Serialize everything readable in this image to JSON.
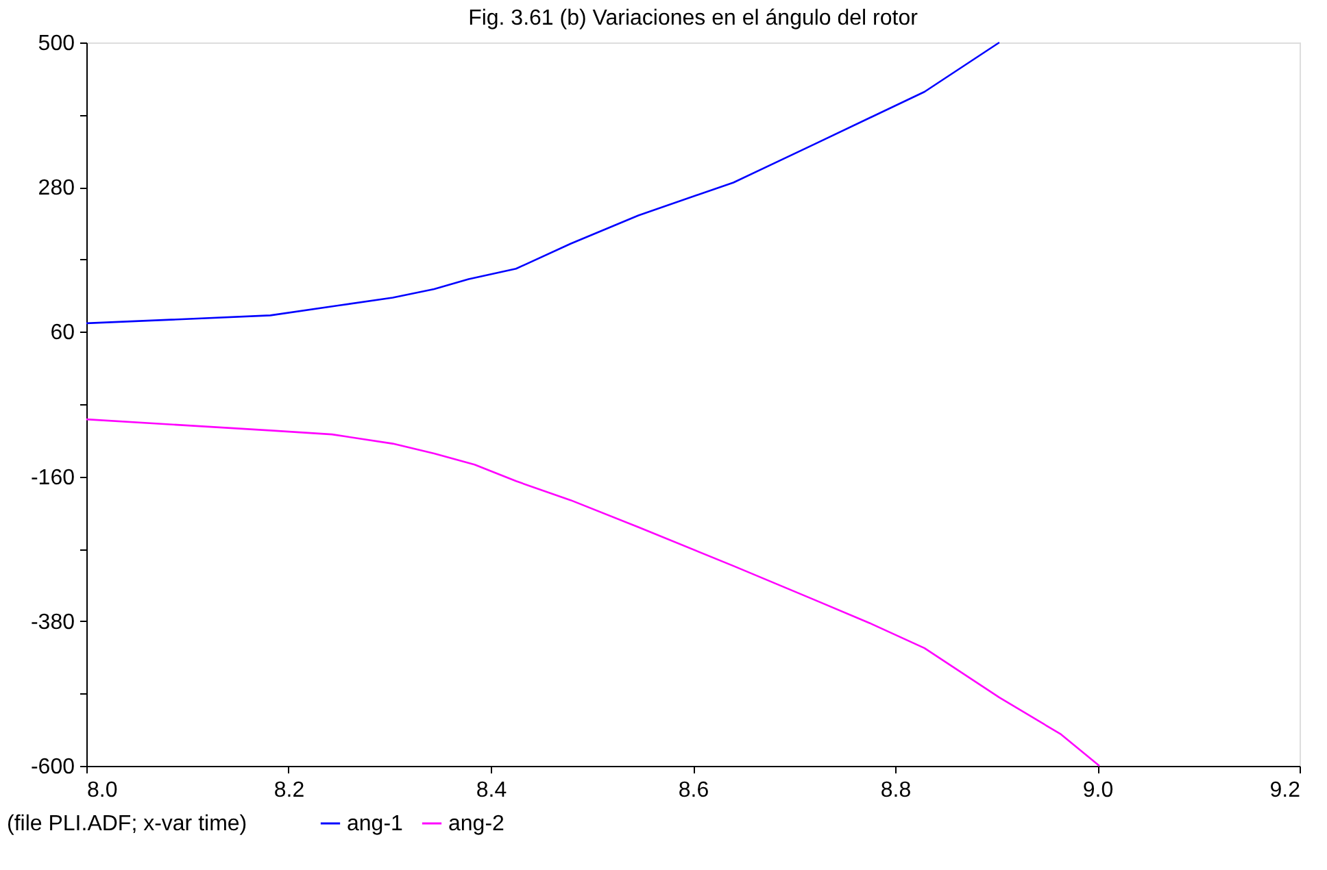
{
  "chart_data": {
    "type": "line",
    "title": "Fig. 3.61 (b) Variaciones en el ángulo del rotor",
    "xlim": [
      8.0,
      9.2
    ],
    "xticks": [
      {
        "value": 8.0,
        "label": "8.0"
      },
      {
        "value": 8.2,
        "label": "8.2"
      },
      {
        "value": 8.4,
        "label": "8.4"
      },
      {
        "value": 8.6,
        "label": "8.6"
      },
      {
        "value": 8.8,
        "label": "8.8"
      },
      {
        "value": 9.0,
        "label": "9.0"
      },
      {
        "value": 9.2,
        "label": "9.2"
      }
    ],
    "ylim": [
      -600,
      500
    ],
    "yticks": [
      -600,
      {
        "value": -490,
        "label": null
      },
      -380,
      {
        "value": -270,
        "label": null
      },
      -160,
      {
        "value": -50,
        "label": null
      },
      60,
      {
        "value": 170,
        "label": null
      },
      280,
      {
        "value": 390,
        "label": null
      },
      500
    ],
    "grid": false,
    "legend": "bottom",
    "line_style": "solid",
    "marker": "none",
    "annotations": [
      "(file PLI.ADF; x-var time)"
    ],
    "series": [
      {
        "name": "ang-1",
        "color": "#0000ff",
        "x": [
          8.0,
          8.182,
          8.249,
          8.303,
          8.344,
          8.378,
          8.425,
          8.479,
          8.546,
          8.64,
          8.721,
          8.829,
          8.903
        ],
        "values": [
          73,
          85,
          100,
          112,
          125,
          140,
          156,
          194,
          237,
          287,
          346,
          425,
          500
        ]
      },
      {
        "name": "ang-2",
        "color": "#ff00ff",
        "x": [
          8.0,
          8.182,
          8.243,
          8.303,
          8.344,
          8.384,
          8.425,
          8.479,
          8.546,
          8.64,
          8.721,
          8.775,
          8.829,
          8.903,
          8.964,
          9.002
        ],
        "values": [
          -73,
          -90,
          -96,
          -110,
          -125,
          -142,
          -167,
          -196,
          -237,
          -296,
          -348,
          -383,
          -421,
          -496,
          -552,
          -600
        ]
      }
    ]
  }
}
